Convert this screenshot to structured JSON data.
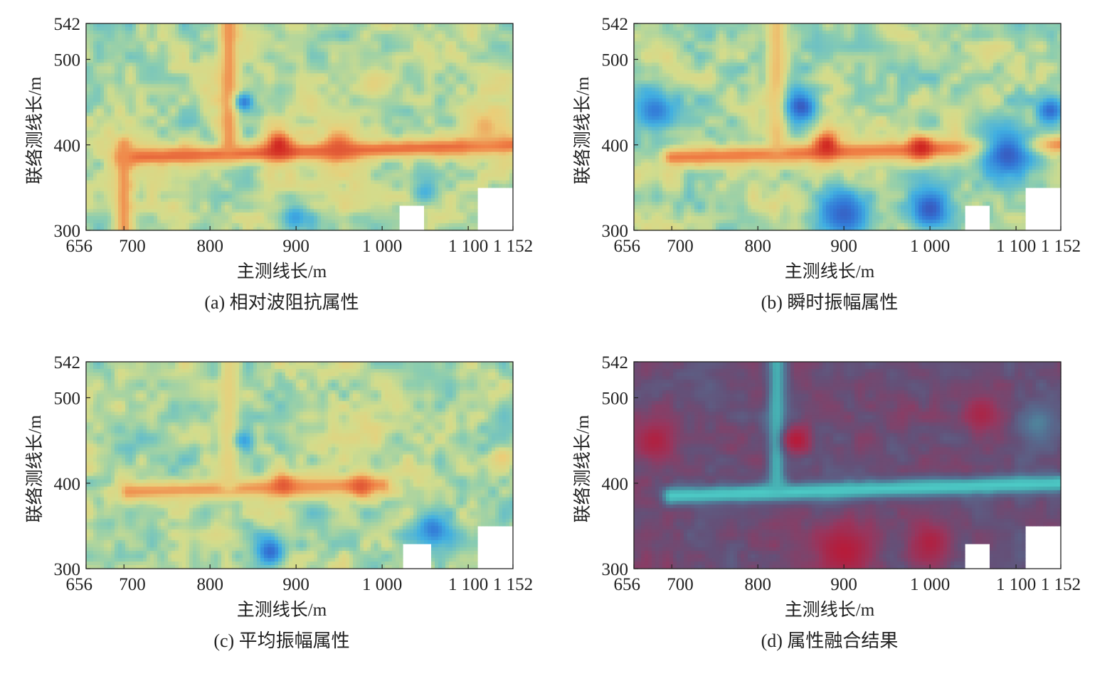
{
  "figure": {
    "xlabel": "主测线长/m",
    "ylabel": "联络测线长/m"
  },
  "chart_data": [
    {
      "type": "heatmap",
      "caption": "(a) 相对波阻抗属性",
      "xlabel": "主测线长/m",
      "ylabel": "联络测线长/m",
      "xlim": [
        656,
        1152
      ],
      "ylim": [
        300,
        542
      ],
      "xticks": [
        656,
        700,
        800,
        900,
        1000,
        1100,
        1152
      ],
      "xtick_labels": [
        "656",
        "700",
        "800",
        "900",
        "1 000",
        "1 100",
        "1 152"
      ],
      "yticks": [
        300,
        400,
        500,
        542
      ],
      "ytick_labels": [
        "300",
        "400",
        "500",
        "542"
      ],
      "colormap": "blue-yellow-red",
      "style": "rainbow",
      "grid": false,
      "features": [
        {
          "kind": "line",
          "x0": 700,
          "y0": 385,
          "x1": 1152,
          "y1": 400,
          "intensity": 0.88
        },
        {
          "kind": "line",
          "x0": 700,
          "y0": 300,
          "x1": 700,
          "y1": 400,
          "intensity": 0.8
        },
        {
          "kind": "line",
          "x0": 822,
          "y0": 400,
          "x1": 822,
          "y1": 542,
          "intensity": 0.8
        },
        {
          "kind": "blob",
          "x": 880,
          "y": 400,
          "r": 22,
          "intensity": 1.0
        },
        {
          "kind": "blob",
          "x": 950,
          "y": 397,
          "r": 25,
          "intensity": 0.9
        },
        {
          "kind": "blob",
          "x": 1120,
          "y": 420,
          "r": 28,
          "intensity": 0.75
        },
        {
          "kind": "blob",
          "x": 990,
          "y": 470,
          "r": 18,
          "intensity": 0.65
        },
        {
          "kind": "blob",
          "x": 840,
          "y": 450,
          "r": 14,
          "intensity": 0.15
        },
        {
          "kind": "blob",
          "x": 900,
          "y": 315,
          "r": 20,
          "intensity": 0.25
        },
        {
          "kind": "blob",
          "x": 1050,
          "y": 345,
          "r": 20,
          "intensity": 0.3
        }
      ],
      "blank_regions": [
        {
          "x0": 1020,
          "x1": 1050,
          "y0": 300,
          "y1": 330
        },
        {
          "x0": 1110,
          "x1": 1152,
          "y0": 300,
          "y1": 352
        }
      ]
    },
    {
      "type": "heatmap",
      "caption": "(b) 瞬时振幅属性",
      "xlabel": "主测线长/m",
      "ylabel": "联络测线长/m",
      "xlim": [
        656,
        1152
      ],
      "ylim": [
        300,
        542
      ],
      "xticks": [
        656,
        700,
        800,
        900,
        1000,
        1100,
        1152
      ],
      "xtick_labels": [
        "656",
        "700",
        "800",
        "900",
        "1 000",
        "1 100",
        "1 152"
      ],
      "yticks": [
        300,
        400,
        500,
        542
      ],
      "ytick_labels": [
        "300",
        "400",
        "500",
        "542"
      ],
      "colormap": "blue-yellow-red",
      "style": "rainbow",
      "grid": false,
      "features": [
        {
          "kind": "line",
          "x0": 700,
          "y0": 385,
          "x1": 1152,
          "y1": 400,
          "intensity": 0.85
        },
        {
          "kind": "line",
          "x0": 822,
          "y0": 400,
          "x1": 822,
          "y1": 542,
          "intensity": 0.72
        },
        {
          "kind": "blob",
          "x": 880,
          "y": 400,
          "r": 20,
          "intensity": 1.0
        },
        {
          "kind": "blob",
          "x": 990,
          "y": 397,
          "r": 18,
          "intensity": 1.0
        },
        {
          "kind": "blob",
          "x": 850,
          "y": 445,
          "r": 22,
          "intensity": 0.05
        },
        {
          "kind": "blob",
          "x": 900,
          "y": 320,
          "r": 35,
          "intensity": 0.08
        },
        {
          "kind": "blob",
          "x": 1000,
          "y": 325,
          "r": 30,
          "intensity": 0.05
        },
        {
          "kind": "blob",
          "x": 1090,
          "y": 390,
          "r": 40,
          "intensity": 0.05
        },
        {
          "kind": "blob",
          "x": 680,
          "y": 440,
          "r": 30,
          "intensity": 0.15
        },
        {
          "kind": "blob",
          "x": 1140,
          "y": 440,
          "r": 18,
          "intensity": 0.1
        }
      ],
      "blank_regions": [
        {
          "x0": 1040,
          "x1": 1070,
          "y0": 300,
          "y1": 330
        },
        {
          "x0": 1110,
          "x1": 1152,
          "y0": 300,
          "y1": 352
        }
      ]
    },
    {
      "type": "heatmap",
      "caption": "(c) 平均振幅属性",
      "xlabel": "主测线长/m",
      "ylabel": "联络测线长/m",
      "xlim": [
        656,
        1152
      ],
      "ylim": [
        300,
        542
      ],
      "xticks": [
        656,
        700,
        800,
        900,
        1000,
        1100,
        1152
      ],
      "xtick_labels": [
        "656",
        "700",
        "800",
        "900",
        "1 000",
        "1 100",
        "1 152"
      ],
      "yticks": [
        300,
        400,
        500,
        542
      ],
      "ytick_labels": [
        "300",
        "400",
        "500",
        "542"
      ],
      "colormap": "blue-yellow-red",
      "style": "rainbow",
      "grid": false,
      "features": [
        {
          "kind": "line",
          "x0": 705,
          "y0": 390,
          "x1": 1000,
          "y1": 398,
          "intensity": 0.8
        },
        {
          "kind": "line",
          "x0": 822,
          "y0": 400,
          "x1": 822,
          "y1": 542,
          "intensity": 0.65
        },
        {
          "kind": "blob",
          "x": 885,
          "y": 398,
          "r": 18,
          "intensity": 0.9
        },
        {
          "kind": "blob",
          "x": 975,
          "y": 396,
          "r": 18,
          "intensity": 0.9
        },
        {
          "kind": "blob",
          "x": 870,
          "y": 320,
          "r": 20,
          "intensity": 0.1
        },
        {
          "kind": "blob",
          "x": 1060,
          "y": 345,
          "r": 22,
          "intensity": 0.15
        },
        {
          "kind": "blob",
          "x": 840,
          "y": 450,
          "r": 14,
          "intensity": 0.25
        },
        {
          "kind": "blob",
          "x": 1140,
          "y": 430,
          "r": 16,
          "intensity": 0.7
        }
      ],
      "blank_regions": [
        {
          "x0": 1025,
          "x1": 1055,
          "y0": 300,
          "y1": 330
        },
        {
          "x0": 1110,
          "x1": 1152,
          "y0": 300,
          "y1": 352
        }
      ]
    },
    {
      "type": "heatmap",
      "caption": "(d) 属性融合结果",
      "xlabel": "主测线长/m",
      "ylabel": "联络测线长/m",
      "xlim": [
        656,
        1152
      ],
      "ylim": [
        300,
        542
      ],
      "xticks": [
        656,
        700,
        800,
        900,
        1000,
        1100,
        1152
      ],
      "xtick_labels": [
        "656",
        "700",
        "800",
        "900",
        "1 000",
        "1 100",
        "1 152"
      ],
      "yticks": [
        300,
        400,
        500,
        542
      ],
      "ytick_labels": [
        "300",
        "400",
        "500",
        "542"
      ],
      "colormap": "red-purple-cyan",
      "style": "fusion",
      "grid": false,
      "features": [
        {
          "kind": "line",
          "x0": 700,
          "y0": 385,
          "x1": 1152,
          "y1": 400,
          "intensity": 0.95
        },
        {
          "kind": "line",
          "x0": 822,
          "y0": 400,
          "x1": 822,
          "y1": 542,
          "intensity": 0.85
        },
        {
          "kind": "blob",
          "x": 1125,
          "y": 470,
          "r": 35,
          "intensity": 0.7
        },
        {
          "kind": "blob",
          "x": 845,
          "y": 450,
          "r": 18,
          "intensity": 0.0
        },
        {
          "kind": "blob",
          "x": 900,
          "y": 320,
          "r": 40,
          "intensity": 0.0
        },
        {
          "kind": "blob",
          "x": 1000,
          "y": 330,
          "r": 30,
          "intensity": 0.05
        },
        {
          "kind": "blob",
          "x": 680,
          "y": 450,
          "r": 30,
          "intensity": 0.05
        },
        {
          "kind": "blob",
          "x": 1060,
          "y": 480,
          "r": 25,
          "intensity": 0.1
        }
      ],
      "blank_regions": [
        {
          "x0": 1040,
          "x1": 1070,
          "y0": 300,
          "y1": 330
        },
        {
          "x0": 1110,
          "x1": 1152,
          "y0": 300,
          "y1": 352
        }
      ]
    }
  ]
}
